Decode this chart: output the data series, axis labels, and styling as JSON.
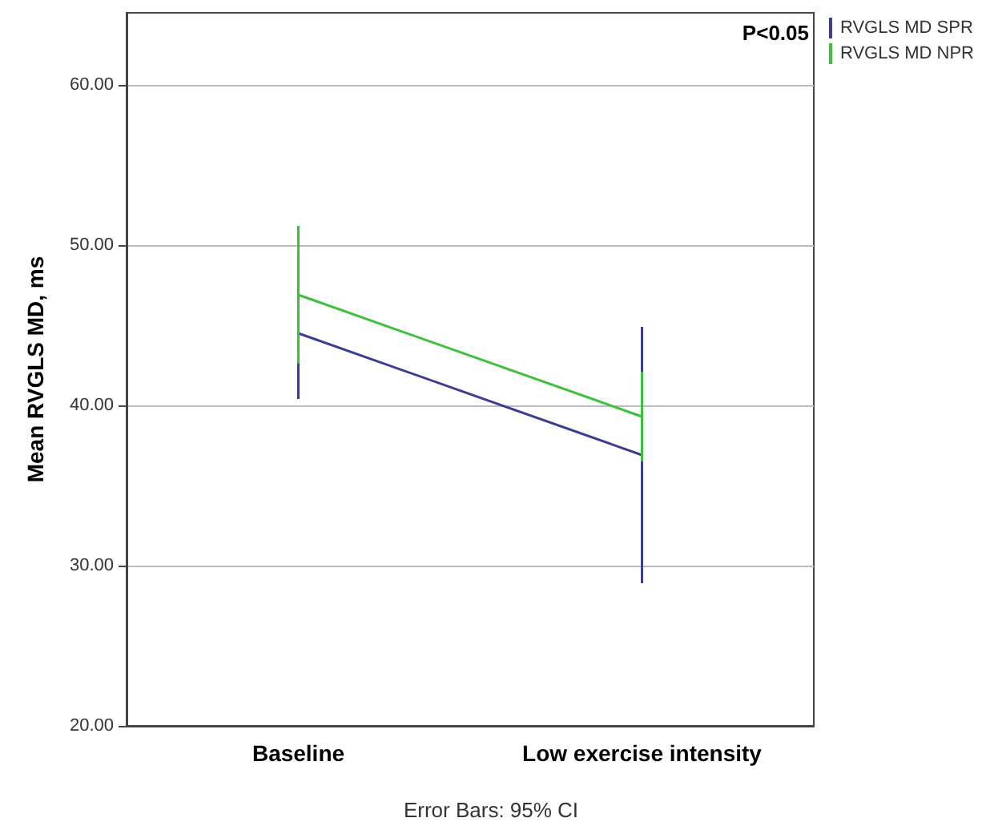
{
  "chart_data": {
    "type": "line",
    "ylabel": "Mean RVGLS MD, ms",
    "categories": [
      "Baseline",
      "Low exercise intensity"
    ],
    "series": [
      {
        "name": "RVGLS MD SPR",
        "color": "#3d3c92",
        "values": [
          44.5,
          36.9
        ],
        "errors": [
          [
            40.4,
            48.6
          ],
          [
            28.9,
            44.9
          ]
        ]
      },
      {
        "name": "RVGLS MD NPR",
        "color": "#3cc13c",
        "values": [
          46.9,
          39.3
        ],
        "errors": [
          [
            42.6,
            51.2
          ],
          [
            36.5,
            42.1
          ]
        ]
      }
    ],
    "ylim": [
      20,
      64.5
    ],
    "yticks": [
      {
        "value": 20,
        "label": "20.00"
      },
      {
        "value": 30,
        "label": "30.00"
      },
      {
        "value": 40,
        "label": "40.00"
      },
      {
        "value": 50,
        "label": "50.00"
      },
      {
        "value": 60,
        "label": "60.00"
      }
    ],
    "grid": "y",
    "legend": "top right",
    "marker": "none",
    "line_style": "solid",
    "annotations": [
      "P<0.05",
      "Error Bars: 95% CI"
    ]
  }
}
